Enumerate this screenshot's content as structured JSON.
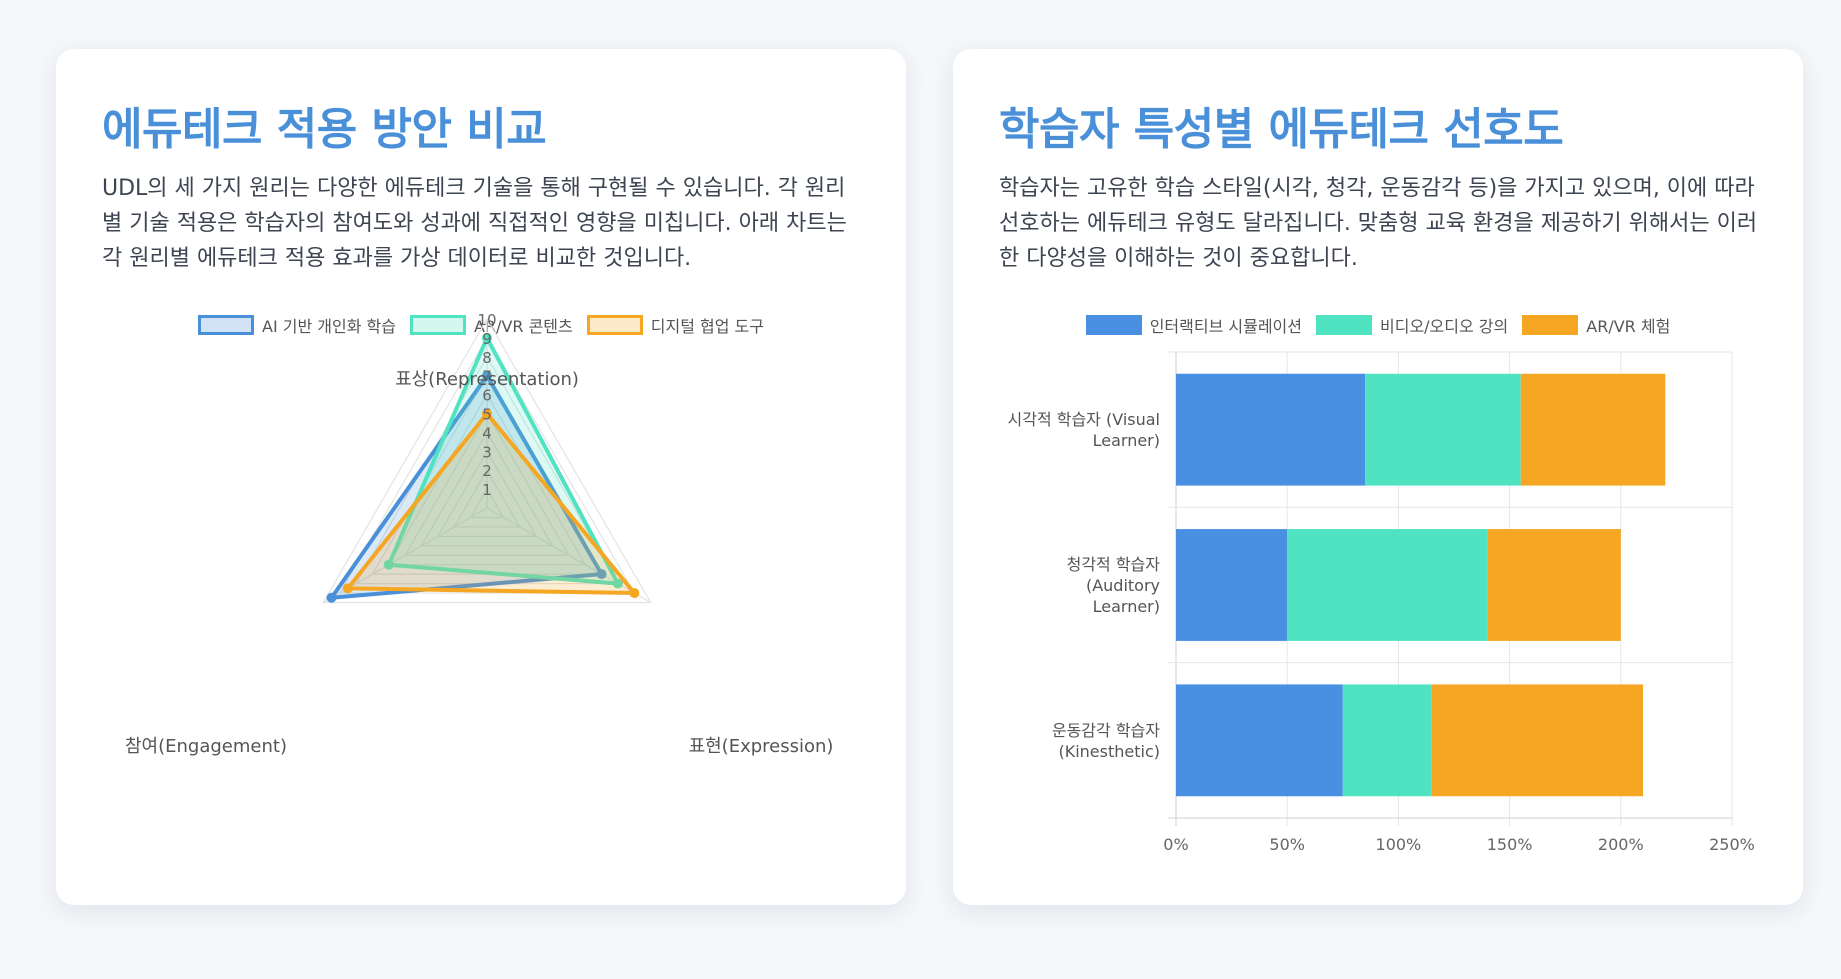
{
  "left_card": {
    "title": "에듀테크 적용 방안 비교",
    "description": "UDL의 세 가지 원리는 다양한 에듀테크 기술을 통해 구현될 수 있습니다. 각 원리별 기술 적용은 학습자의 참여도와 성과에 직접적인 영향을 미칩니다. 아래 차트는 각 원리별 에듀테크 적용 효과를 가상 데이터로 비교한 것입니다."
  },
  "right_card": {
    "title": "학습자 특성별 에듀테크 선호도",
    "description": "학습자는 고유한 학습 스타일(시각, 청각, 운동감각 등)을 가지고 있으며, 이에 따라 선호하는 에듀테크 유형도 달라집니다. 맞춤형 교육 환경을 제공하기 위해서는 이러한 다양성을 이해하는 것이 중요합니다."
  },
  "chart_data": [
    {
      "type": "radar",
      "axes": [
        "표상(Representation)",
        "표현(Expression)",
        "참여(Engagement)"
      ],
      "rlim": [
        0,
        10
      ],
      "ticks": [
        "1",
        "2",
        "3",
        "4",
        "5",
        "6",
        "7",
        "8",
        "9",
        "10"
      ],
      "series": [
        {
          "name": "AI 기반 개인화 학습",
          "values": [
            7,
            7,
            9.5
          ],
          "color": "#4a90d9"
        },
        {
          "name": "AR/VR 콘텐츠",
          "values": [
            9,
            8,
            6
          ],
          "color": "#50e3c2"
        },
        {
          "name": "디지털 협업 도구",
          "values": [
            5,
            9,
            8.5
          ],
          "color": "#f5a623"
        }
      ]
    },
    {
      "type": "bar",
      "orientation": "horizontal",
      "stacked": true,
      "categories": [
        [
          "시각적 학습자 (Visual",
          "Learner)"
        ],
        [
          "청각적 학습자",
          "(Auditory",
          "Learner)"
        ],
        [
          "운동감각 학습자",
          "(Kinesthetic)"
        ]
      ],
      "xlim": [
        0,
        250
      ],
      "xticks": [
        "0%",
        "50%",
        "100%",
        "150%",
        "200%",
        "250%"
      ],
      "series": [
        {
          "name": "인터랙티브 시뮬레이션",
          "values": [
            85,
            50,
            75
          ],
          "color": "#4a90e2"
        },
        {
          "name": "비디오/오디오 강의",
          "values": [
            70,
            90,
            40
          ],
          "color": "#50e3c2"
        },
        {
          "name": "AR/VR 체험",
          "values": [
            65,
            60,
            95
          ],
          "color": "#f5a623"
        }
      ]
    }
  ]
}
